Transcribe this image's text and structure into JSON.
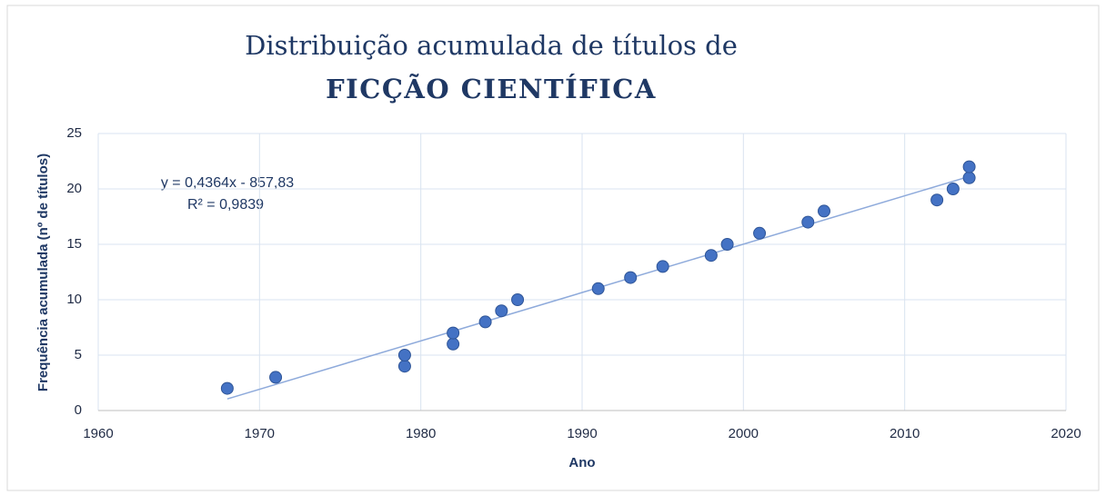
{
  "chart_data": {
    "type": "scatter",
    "title": "Distribuição acumulada de títulos de",
    "subtitle": "FICÇÃO CIENTÍFICA",
    "x_label": "Ano",
    "y_label": "Frequência acumulada (nº de títulos)",
    "x": [
      1968,
      1971,
      1979,
      1979,
      1982,
      1982,
      1984,
      1985,
      1986,
      1991,
      1993,
      1995,
      1998,
      1999,
      2001,
      2004,
      2005,
      2012,
      2013,
      2014,
      2014
    ],
    "values": [
      2,
      3,
      4,
      5,
      6,
      7,
      8,
      9,
      10,
      11,
      12,
      13,
      14,
      15,
      16,
      17,
      18,
      19,
      20,
      21,
      22
    ],
    "color": "#4472c4",
    "xlim": [
      1960,
      2020
    ],
    "xticks": [
      1960,
      1970,
      1980,
      1990,
      2000,
      2010,
      2020
    ],
    "ylim": [
      0,
      25
    ],
    "yticks": [
      0,
      5,
      10,
      15,
      20,
      25
    ],
    "grid": true,
    "trendline": {
      "equation": "y = 0,4364x - 857,83",
      "r2": "R² = 0,9839",
      "color": "#8eaadb"
    }
  }
}
